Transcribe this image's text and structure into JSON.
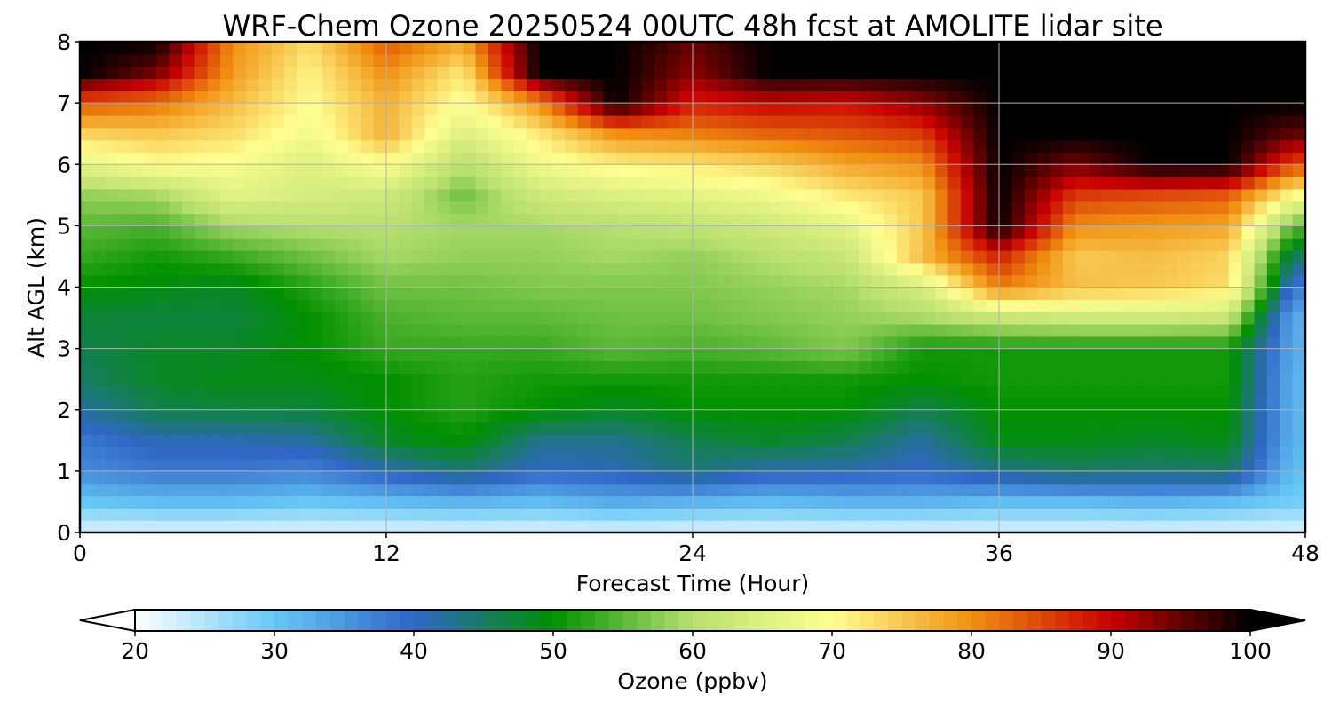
{
  "chart_data": {
    "type": "heatmap",
    "title": "WRF-Chem Ozone  20250524 00UTC 48h fcst at AMOLITE lidar site",
    "xlabel": "Forecast Time (Hour)",
    "ylabel": "Alt AGL (km)",
    "xlim": [
      0,
      48
    ],
    "ylim": [
      0,
      8
    ],
    "x_ticks": [
      "0",
      "12",
      "24",
      "36",
      "48"
    ],
    "y_ticks": [
      "0",
      "1",
      "2",
      "3",
      "4",
      "5",
      "6",
      "7",
      "8"
    ],
    "grid": true,
    "colorbar": {
      "label": "Ozone  (ppbv)",
      "range": [
        20,
        100
      ],
      "ticks": [
        "20",
        "30",
        "40",
        "50",
        "60",
        "70",
        "80",
        "90",
        "100"
      ],
      "extend": "both",
      "colors": [
        "#ffffff",
        "#66c8f5",
        "#3066c8",
        "#009000",
        "#b8e070",
        "#ffff90",
        "#f09010",
        "#c80000",
        "#000000"
      ]
    },
    "x": [
      0,
      3,
      6,
      9,
      12,
      15,
      18,
      21,
      24,
      27,
      30,
      33,
      36,
      39,
      42,
      45,
      47.5
    ],
    "altitude_km": [
      0,
      0.5,
      1,
      1.5,
      2,
      2.5,
      3,
      3.5,
      4,
      4.5,
      5,
      5.5,
      6,
      6.5,
      7,
      7.5,
      8
    ],
    "ozone_ppbv": [
      [
        22,
        22,
        22,
        22,
        22,
        22,
        22,
        22,
        22,
        22,
        22,
        22,
        22,
        22,
        22,
        22,
        22
      ],
      [
        30,
        31,
        31,
        30,
        31,
        32,
        31,
        33,
        32,
        31,
        32,
        32,
        31,
        31,
        32,
        31,
        29
      ],
      [
        36,
        38,
        38,
        37,
        41,
        44,
        40,
        41,
        44,
        41,
        41,
        40,
        43,
        45,
        44,
        45,
        31
      ],
      [
        38,
        41,
        41,
        42,
        48,
        50,
        43,
        43,
        46,
        48,
        46,
        42,
        49,
        49,
        48,
        49,
        32
      ],
      [
        42,
        46,
        47,
        47,
        50,
        52,
        50,
        48,
        50,
        50,
        50,
        46,
        50,
        50,
        50,
        50,
        32
      ],
      [
        45,
        48,
        49,
        49,
        50,
        52,
        51,
        51,
        51,
        51,
        51,
        50,
        51,
        51,
        51,
        51,
        32
      ],
      [
        46,
        48,
        48,
        50,
        53,
        53,
        53,
        55,
        54,
        55,
        57,
        51,
        51,
        51,
        51,
        51,
        33
      ],
      [
        47,
        47,
        47,
        50,
        54,
        55,
        55,
        56,
        56,
        57,
        58,
        59,
        62,
        63,
        63,
        62,
        33
      ],
      [
        50,
        49,
        48,
        52,
        56,
        56,
        57,
        57,
        57,
        58,
        59,
        64,
        81,
        76,
        75,
        73,
        38
      ],
      [
        53,
        51,
        53,
        56,
        59,
        58,
        58,
        59,
        58,
        60,
        62,
        76,
        88,
        75,
        76,
        74,
        45
      ],
      [
        55,
        54,
        59,
        60,
        60,
        59,
        59,
        60,
        61,
        63,
        66,
        75,
        100,
        80,
        79,
        78,
        55
      ],
      [
        58,
        59,
        66,
        64,
        63,
        56,
        63,
        65,
        66,
        68,
        72,
        75,
        100,
        86,
        85,
        84,
        70
      ],
      [
        66,
        70,
        69,
        65,
        70,
        60,
        68,
        71,
        72,
        74,
        78,
        80,
        100,
        94,
        100,
        100,
        85
      ],
      [
        74,
        75,
        73,
        68,
        77,
        65,
        72,
        80,
        81,
        83,
        84,
        86,
        100,
        100,
        100,
        100,
        95
      ],
      [
        84,
        82,
        76,
        70,
        77,
        69,
        80,
        100,
        88,
        90,
        89,
        93,
        100,
        100,
        100,
        100,
        100
      ],
      [
        100,
        94,
        79,
        71,
        80,
        72,
        100,
        100,
        93,
        100,
        100,
        100,
        100,
        100,
        100,
        100,
        100
      ],
      [
        100,
        100,
        80,
        73,
        84,
        78,
        100,
        100,
        95,
        100,
        100,
        100,
        100,
        100,
        100,
        100,
        100
      ]
    ]
  }
}
